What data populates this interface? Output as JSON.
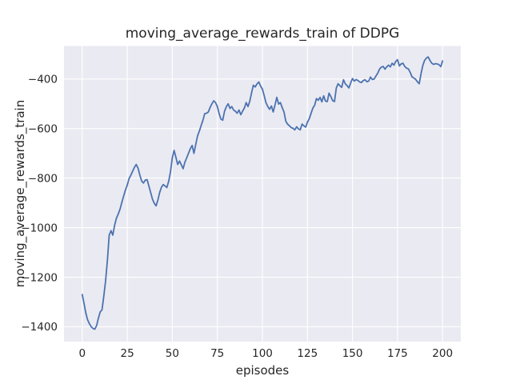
{
  "chart_data": {
    "type": "line",
    "title": "moving_average_rewards_train of DDPG",
    "xlabel": "episodes",
    "ylabel": "moving_average_rewards_train",
    "legend_position": "none",
    "grid": true,
    "plot_bg": "#eaeaf2",
    "grid_color": "#ffffff",
    "line_color": "#4c72b0",
    "text_color": "#262626",
    "xlim": [
      -10.1,
      210.1
    ],
    "ylim": [
      -1460,
      -267
    ],
    "xticks": {
      "values": [
        0,
        25,
        50,
        75,
        100,
        125,
        150,
        175,
        200
      ],
      "labels": [
        "0",
        "25",
        "50",
        "75",
        "100",
        "125",
        "150",
        "175",
        "200"
      ]
    },
    "yticks": {
      "values": [
        -1400,
        -1200,
        -1000,
        -800,
        -600,
        -400
      ],
      "labels": [
        "−1400",
        "−1200",
        "−1000",
        "−800",
        "−600",
        "−400"
      ]
    },
    "series": [
      {
        "name": "moving_average_rewards_train",
        "x_range": [
          0,
          200
        ],
        "x_step": 1,
        "values": [
          -1270,
          -1305,
          -1345,
          -1372,
          -1388,
          -1400,
          -1407,
          -1410,
          -1395,
          -1365,
          -1340,
          -1332,
          -1275,
          -1215,
          -1130,
          -1030,
          -1012,
          -1030,
          -990,
          -962,
          -945,
          -925,
          -898,
          -872,
          -848,
          -828,
          -802,
          -788,
          -772,
          -756,
          -745,
          -760,
          -788,
          -812,
          -820,
          -808,
          -806,
          -832,
          -858,
          -885,
          -902,
          -912,
          -888,
          -858,
          -836,
          -826,
          -832,
          -838,
          -812,
          -775,
          -718,
          -688,
          -716,
          -745,
          -731,
          -746,
          -762,
          -736,
          -718,
          -700,
          -681,
          -668,
          -700,
          -664,
          -630,
          -610,
          -588,
          -566,
          -540,
          -538,
          -533,
          -514,
          -500,
          -488,
          -495,
          -511,
          -540,
          -562,
          -566,
          -530,
          -511,
          -500,
          -519,
          -511,
          -525,
          -530,
          -538,
          -525,
          -544,
          -530,
          -517,
          -495,
          -511,
          -490,
          -455,
          -425,
          -432,
          -420,
          -412,
          -428,
          -441,
          -468,
          -496,
          -511,
          -522,
          -509,
          -533,
          -504,
          -474,
          -501,
          -495,
          -516,
          -533,
          -571,
          -582,
          -589,
          -596,
          -599,
          -605,
          -593,
          -601,
          -605,
          -582,
          -589,
          -594,
          -574,
          -560,
          -539,
          -517,
          -506,
          -479,
          -486,
          -474,
          -492,
          -468,
          -489,
          -491,
          -457,
          -471,
          -487,
          -491,
          -436,
          -419,
          -427,
          -434,
          -403,
          -419,
          -427,
          -436,
          -415,
          -398,
          -408,
          -402,
          -406,
          -412,
          -414,
          -406,
          -403,
          -411,
          -408,
          -392,
          -402,
          -400,
          -388,
          -376,
          -360,
          -352,
          -349,
          -360,
          -351,
          -344,
          -351,
          -336,
          -344,
          -329,
          -322,
          -347,
          -339,
          -336,
          -349,
          -356,
          -359,
          -373,
          -391,
          -396,
          -401,
          -411,
          -419,
          -380,
          -345,
          -325,
          -315,
          -311,
          -325,
          -336,
          -341,
          -338,
          -339,
          -342,
          -350,
          -327
        ]
      }
    ]
  }
}
